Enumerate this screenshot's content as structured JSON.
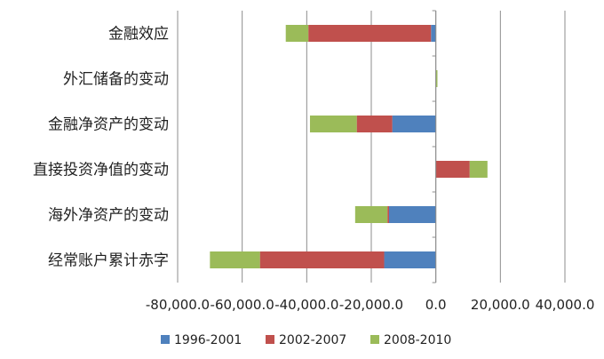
{
  "chart_data": {
    "type": "bar",
    "orientation": "horizontal",
    "stacked": true,
    "categories": [
      "金融效应",
      "外汇储备的变动",
      "金融净资产的变动",
      "直接投资净值的变动",
      "海外净资产的变动",
      "经常账户累计赤字"
    ],
    "series": [
      {
        "name": "1996-2001",
        "color": "#4f81bd",
        "values": [
          -1500,
          0,
          -13500,
          0,
          -14500,
          -16000
        ]
      },
      {
        "name": "2002-2007",
        "color": "#c0504d",
        "values": [
          -38000,
          0,
          -11000,
          10500,
          -500,
          -38500
        ]
      },
      {
        "name": "2008-2010",
        "color": "#9bbb59",
        "values": [
          -7000,
          500,
          -14500,
          5500,
          -10000,
          -15500
        ]
      }
    ],
    "xlim": [
      -80000,
      40000
    ],
    "x_ticks": [
      -80000,
      -60000,
      -40000,
      -20000,
      0,
      20000,
      40000
    ],
    "x_tick_labels": [
      "-80,000.0",
      "-60,000.0",
      "-40,000.0",
      "-20,000.0",
      "0.0",
      "20,000.0",
      "40,000.0"
    ],
    "grid": "vertical",
    "legend_position": "bottom",
    "title": "",
    "xlabel": "",
    "ylabel": ""
  }
}
